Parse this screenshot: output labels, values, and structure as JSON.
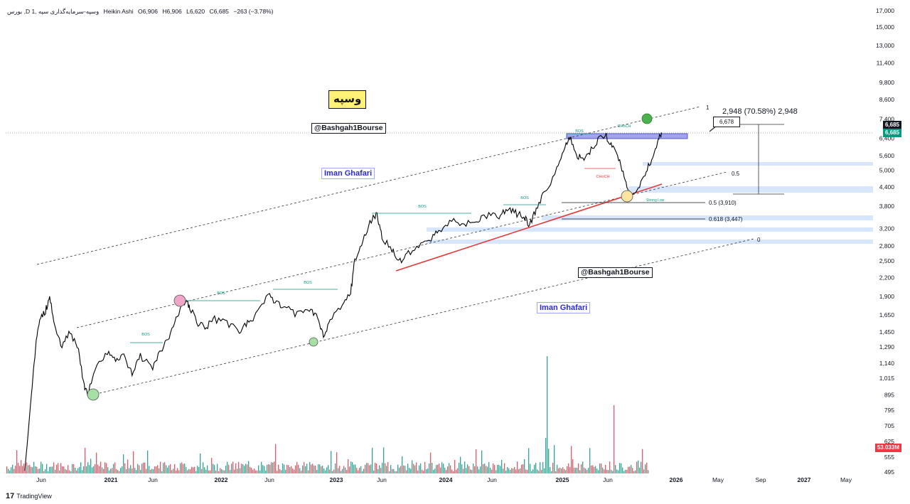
{
  "header": {
    "interval": "1",
    "symbol": "بورس ,D وسپه-سرمایه‌گذاری سپه ,1",
    "chart_style": "Heikin Ashi",
    "open": "O6,906",
    "high": "H6,906",
    "low": "L6,620",
    "close": "C6,685",
    "change": "−263 (−3.78%)"
  },
  "symbol_badge": "وسپه",
  "watermarks": {
    "handle": "@Bashgah1Bourse",
    "author": "Iman Ghafari"
  },
  "price": {
    "last": "6,685",
    "last_tag_top": "6,685",
    "last_tag_bottom": "6,685",
    "volume": "53.033M"
  },
  "measure": {
    "label": "2,948 (70.58%) 2,948",
    "callout": "6,678"
  },
  "annotations": {
    "bos": "BOS",
    "choch": "CHoCH",
    "fib_one": "1",
    "fib_half": "0.5",
    "fib_zero": "0",
    "fib_half_value": "0.5 (3,910)",
    "fib_618_value": "0.618 (3,447)",
    "strong_low": "Strong Low"
  },
  "branding": {
    "logo_text": "TradingView",
    "logo_glyph": "17"
  },
  "colors": {
    "up": "#089981",
    "down": "#f23645",
    "trend": "#e53935",
    "zone": "#d7e6fb",
    "bos": "#089981",
    "ob": "#7b7ee8"
  },
  "chart_data": {
    "type": "line",
    "ylim": [
      495,
      17000
    ],
    "y_scale": "log",
    "y_ticks": [
      "17,000",
      "15,000",
      "13,000",
      "11,400",
      "9,800",
      "8,600",
      "7,400",
      "6,400",
      "5,600",
      "5,000",
      "4,400",
      "3,800",
      "3,200",
      "2,800",
      "2,500",
      "2,200",
      "1,900",
      "1,650",
      "1,450",
      "1,290",
      "1,140",
      "1,015",
      "895",
      "795",
      "705",
      "625",
      "555",
      "495"
    ],
    "x_ticks": [
      "Jun",
      "2021",
      "Jun",
      "2022",
      "Jun",
      "2023",
      "Jun",
      "2024",
      "Jun",
      "2025",
      "Jun",
      "2026",
      "May",
      "Sep",
      "2027",
      "May"
    ],
    "series": [
      {
        "values": [
          [
            0,
            500
          ],
          [
            0.08,
            900
          ],
          [
            0.13,
            1300
          ],
          [
            0.18,
            1600
          ],
          [
            0.25,
            1700
          ],
          [
            0.3,
            1900
          ],
          [
            0.36,
            1500
          ],
          [
            0.45,
            1300
          ],
          [
            0.55,
            1450
          ],
          [
            0.65,
            1250
          ],
          [
            0.72,
            950
          ],
          [
            0.76,
            900
          ],
          [
            0.85,
            1100
          ],
          [
            1.0,
            1250
          ],
          [
            1.1,
            1150
          ],
          [
            1.2,
            1200
          ],
          [
            1.3,
            1050
          ],
          [
            1.4,
            1200
          ],
          [
            1.55,
            1100
          ],
          [
            1.65,
            1250
          ],
          [
            1.75,
            1400
          ],
          [
            1.85,
            1650
          ],
          [
            1.95,
            1850
          ],
          [
            2.0,
            1750
          ],
          [
            2.1,
            1550
          ],
          [
            2.2,
            1500
          ],
          [
            2.3,
            1600
          ],
          [
            2.45,
            1550
          ],
          [
            2.6,
            1450
          ],
          [
            2.7,
            1550
          ],
          [
            2.8,
            1650
          ],
          [
            2.95,
            1950
          ],
          [
            3.05,
            1800
          ],
          [
            3.15,
            1750
          ],
          [
            3.3,
            1650
          ],
          [
            3.45,
            1700
          ],
          [
            3.55,
            1650
          ],
          [
            3.62,
            1380
          ],
          [
            3.7,
            1600
          ],
          [
            3.85,
            1800
          ],
          [
            3.95,
            1950
          ],
          [
            4.0,
            2500
          ],
          [
            4.1,
            2900
          ],
          [
            4.2,
            3400
          ],
          [
            4.27,
            3600
          ],
          [
            4.33,
            3000
          ],
          [
            4.45,
            2700
          ],
          [
            4.55,
            2500
          ],
          [
            4.65,
            2650
          ],
          [
            4.8,
            2850
          ],
          [
            4.95,
            3000
          ],
          [
            5.05,
            3200
          ],
          [
            5.2,
            3400
          ],
          [
            5.35,
            3300
          ],
          [
            5.5,
            3450
          ],
          [
            5.6,
            3550
          ],
          [
            5.75,
            3500
          ],
          [
            5.85,
            3700
          ],
          [
            5.95,
            3600
          ],
          [
            6.05,
            3500
          ],
          [
            6.12,
            3300
          ],
          [
            6.2,
            3700
          ],
          [
            6.3,
            4200
          ],
          [
            6.45,
            5000
          ],
          [
            6.55,
            6000
          ],
          [
            6.62,
            6400
          ],
          [
            6.7,
            5600
          ],
          [
            6.78,
            5400
          ],
          [
            6.85,
            5800
          ],
          [
            6.95,
            6300
          ],
          [
            7.05,
            6500
          ],
          [
            7.12,
            6000
          ],
          [
            7.2,
            5500
          ],
          [
            7.28,
            4600
          ],
          [
            7.34,
            4100
          ],
          [
            7.42,
            4300
          ],
          [
            7.52,
            4900
          ],
          [
            7.6,
            5400
          ],
          [
            7.67,
            6200
          ],
          [
            7.72,
            6685
          ]
        ]
      }
    ]
  }
}
